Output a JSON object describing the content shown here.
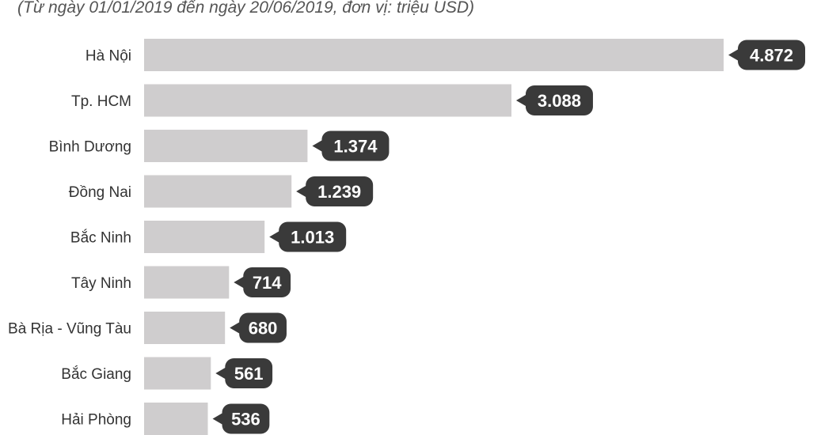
{
  "chart_data": {
    "type": "bar",
    "orientation": "horizontal",
    "subtitle": "(Từ ngày 01/01/2019 đến ngày 20/06/2019, đơn vị: triệu USD)",
    "categories": [
      "Hà Nội",
      "Tp. HCM",
      "Bình Dương",
      "Đồng Nai",
      "Bắc Ninh",
      "Tây Ninh",
      "Bà Rịa - Vũng Tàu",
      "Bắc Giang",
      "Hải Phòng"
    ],
    "values": [
      4872,
      3088,
      1374,
      1239,
      1013,
      714,
      680,
      561,
      536
    ],
    "value_labels": [
      "4.872",
      "3.088",
      "1.374",
      "1.239",
      "1.013",
      "714",
      "680",
      "561",
      "536"
    ],
    "bar_color": "#cfcdce",
    "label_badge_color": "#3a3a3a",
    "grid": false,
    "legend": "none"
  }
}
